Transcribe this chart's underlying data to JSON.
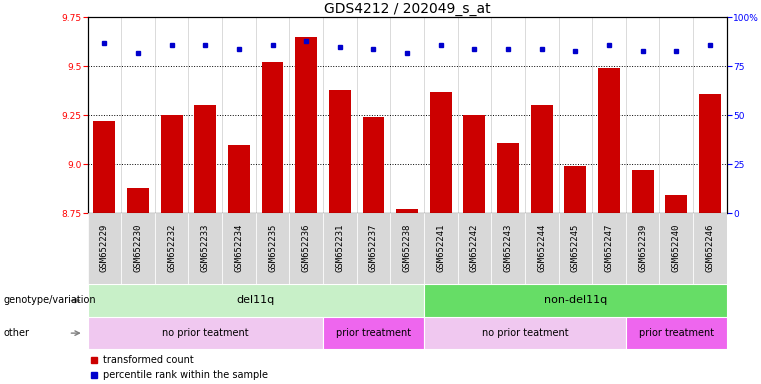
{
  "title": "GDS4212 / 202049_s_at",
  "samples": [
    "GSM652229",
    "GSM652230",
    "GSM652232",
    "GSM652233",
    "GSM652234",
    "GSM652235",
    "GSM652236",
    "GSM652231",
    "GSM652237",
    "GSM652238",
    "GSM652241",
    "GSM652242",
    "GSM652243",
    "GSM652244",
    "GSM652245",
    "GSM652247",
    "GSM652239",
    "GSM652240",
    "GSM652246"
  ],
  "red_values": [
    9.22,
    8.88,
    9.25,
    9.3,
    9.1,
    9.52,
    9.65,
    9.38,
    9.24,
    8.77,
    9.37,
    9.25,
    9.11,
    9.3,
    8.99,
    9.49,
    8.97,
    8.84,
    9.36
  ],
  "blue_values": [
    87,
    82,
    86,
    86,
    84,
    86,
    88,
    85,
    84,
    82,
    86,
    84,
    84,
    84,
    83,
    86,
    83,
    83,
    86
  ],
  "ylim_left": [
    8.75,
    9.75
  ],
  "ylim_right": [
    0,
    100
  ],
  "yticks_left": [
    8.75,
    9.0,
    9.25,
    9.5,
    9.75
  ],
  "yticks_right": [
    0,
    25,
    50,
    75,
    100
  ],
  "grid_values": [
    9.0,
    9.25,
    9.5
  ],
  "genotype_groups": [
    {
      "label": "del11q",
      "start": 0,
      "end": 10,
      "color": "#c8f0c8"
    },
    {
      "label": "non-del11q",
      "start": 10,
      "end": 19,
      "color": "#66dd66"
    }
  ],
  "treatment_groups": [
    {
      "label": "no prior teatment",
      "start": 0,
      "end": 7,
      "color": "#f0c8f0"
    },
    {
      "label": "prior treatment",
      "start": 7,
      "end": 10,
      "color": "#ee66ee"
    },
    {
      "label": "no prior teatment",
      "start": 10,
      "end": 16,
      "color": "#f0c8f0"
    },
    {
      "label": "prior treatment",
      "start": 16,
      "end": 19,
      "color": "#ee66ee"
    }
  ],
  "bar_color": "#CC0000",
  "dot_color": "#0000CC",
  "bar_bottom": 8.75,
  "legend_red": "transformed count",
  "legend_blue": "percentile rank within the sample",
  "row_label_geno": "genotype/variation",
  "row_label_other": "other",
  "title_fontsize": 10,
  "tick_fontsize": 6.5,
  "annot_fontsize": 8
}
